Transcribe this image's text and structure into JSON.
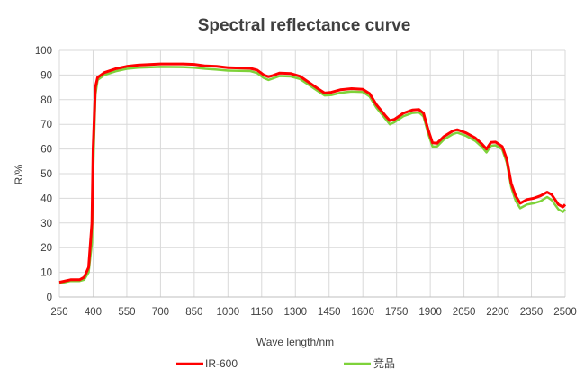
{
  "chart_data": {
    "type": "line",
    "title": "Spectral reflectance curve",
    "xlabel": "Wave length/nm",
    "ylabel": "R/%",
    "xlim": [
      250,
      2500
    ],
    "ylim": [
      0,
      100
    ],
    "xticks": [
      250,
      400,
      550,
      700,
      850,
      1000,
      1150,
      1300,
      1450,
      1600,
      1750,
      1900,
      2050,
      2200,
      2350,
      2500
    ],
    "yticks": [
      0,
      10,
      20,
      30,
      40,
      50,
      60,
      70,
      80,
      90,
      100
    ],
    "grid": true,
    "legend_position": "bottom",
    "x": [
      250,
      300,
      340,
      360,
      380,
      395,
      400,
      410,
      420,
      450,
      500,
      550,
      600,
      700,
      800,
      850,
      900,
      950,
      1000,
      1100,
      1130,
      1160,
      1180,
      1200,
      1230,
      1280,
      1320,
      1360,
      1400,
      1430,
      1460,
      1500,
      1550,
      1600,
      1630,
      1660,
      1700,
      1720,
      1740,
      1780,
      1820,
      1850,
      1870,
      1890,
      1910,
      1930,
      1960,
      2000,
      2020,
      2060,
      2100,
      2130,
      2150,
      2170,
      2190,
      2220,
      2240,
      2260,
      2280,
      2300,
      2330,
      2360,
      2390,
      2420,
      2440,
      2470,
      2490,
      2500
    ],
    "series": [
      {
        "name": "IR-600",
        "color": "#ff0000",
        "values": [
          6,
          7,
          7,
          8,
          12,
          30,
          60,
          85,
          89,
          91,
          92.5,
          93.5,
          94,
          94.5,
          94.5,
          94.3,
          93.7,
          93.5,
          93,
          92.7,
          92,
          90,
          89.3,
          89.8,
          90.8,
          90.6,
          89.5,
          87,
          84.5,
          82.7,
          83,
          84,
          84.5,
          84.2,
          82.5,
          78,
          73.5,
          71.5,
          72,
          74.5,
          75.8,
          76,
          74.5,
          68,
          62.5,
          62.3,
          65,
          67.3,
          67.8,
          66.5,
          64.5,
          62,
          60,
          62.7,
          62.8,
          61,
          56,
          46,
          41,
          38,
          39.5,
          40,
          41,
          42.5,
          41.5,
          37.5,
          36.5,
          37.5
        ]
      },
      {
        "name": "竞品",
        "color": "#7ed23a",
        "values": [
          5.5,
          6.5,
          6.5,
          7,
          10,
          22,
          50,
          82,
          88,
          90,
          91.5,
          92.5,
          93,
          93.3,
          93.2,
          93,
          92.5,
          92.2,
          91.8,
          91.6,
          90.8,
          88.8,
          88,
          88.6,
          89.6,
          89.4,
          88.4,
          86,
          83.5,
          81.7,
          81.9,
          82.8,
          83.3,
          83.1,
          81.3,
          76.8,
          72.3,
          70,
          70.8,
          73.3,
          74.6,
          74.8,
          73.2,
          66.5,
          61,
          61,
          63.8,
          66,
          66.6,
          65.3,
          63.3,
          60.8,
          58.6,
          61.3,
          61.5,
          59.8,
          54.5,
          44.5,
          39,
          36,
          37.5,
          38,
          38.8,
          40.5,
          39.3,
          35.5,
          34.5,
          35.5
        ]
      }
    ]
  }
}
